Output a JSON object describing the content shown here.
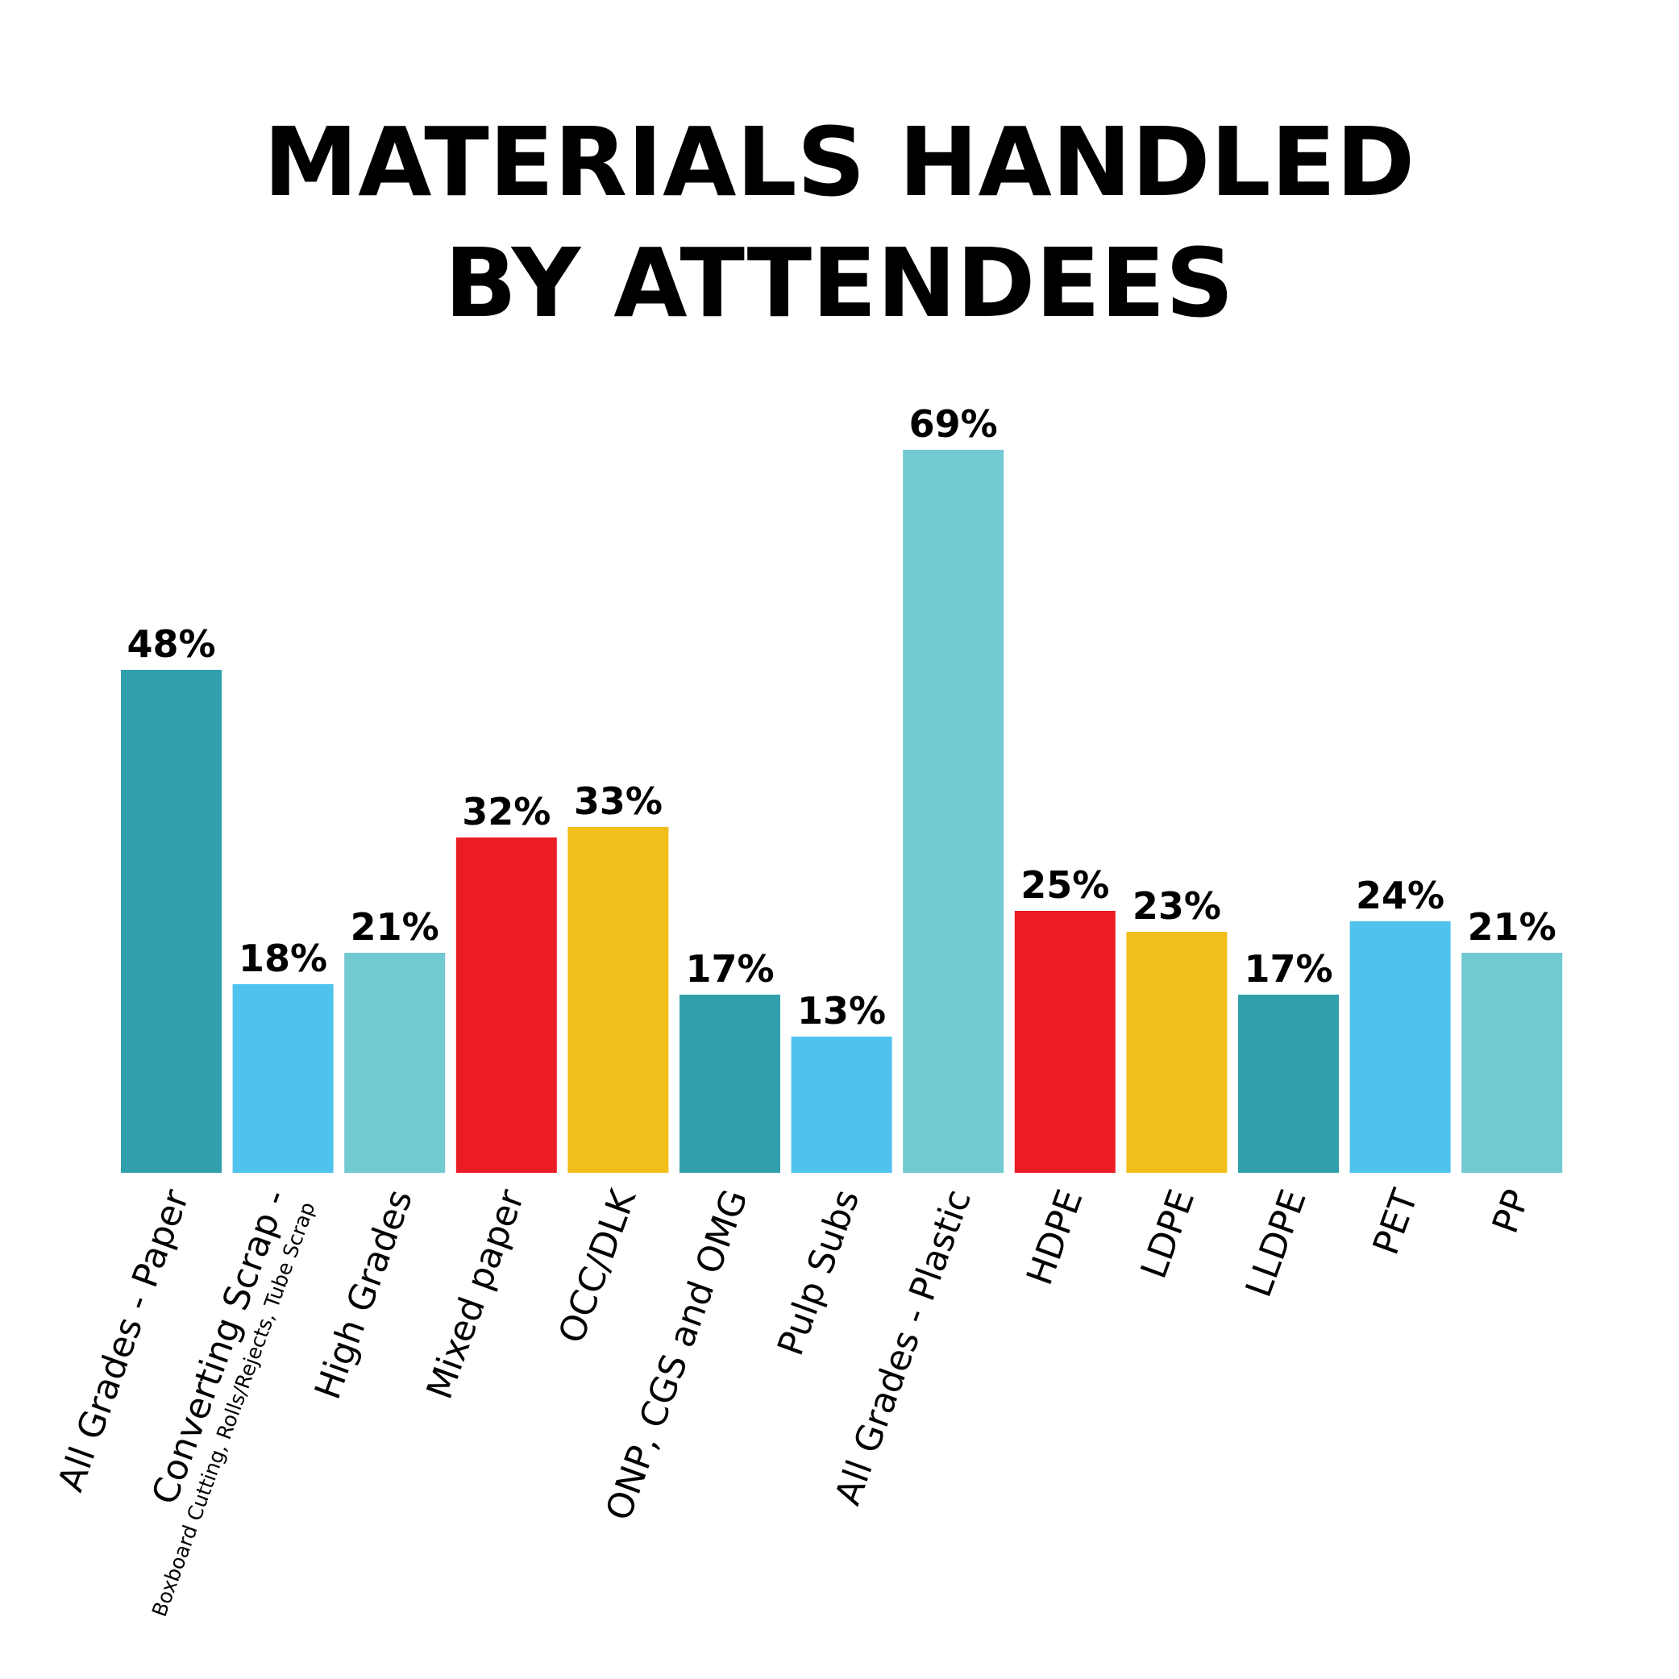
{
  "chart_data": {
    "type": "bar",
    "title_lines": [
      "MATERIALS HANDLED",
      "BY ATTENDEES"
    ],
    "categories": [
      "All Grades - Paper",
      "Converting Scrap -",
      "High Grades",
      "Mixed paper",
      "OCC/DLK",
      "ONP, CGS and OMG",
      "Pulp Subs",
      "All Grades - Plastic",
      "HDPE",
      "LDPE",
      "LLDPE",
      "PET",
      "PP"
    ],
    "category_sublabels": [
      "",
      "Boxboard Cutting, Rolls/Rejects, Tube Scrap",
      "",
      "",
      "",
      "",
      "",
      "",
      "",
      "",
      "",
      "",
      ""
    ],
    "values": [
      48,
      18,
      21,
      32,
      33,
      17,
      13,
      69,
      25,
      23,
      17,
      24,
      21
    ],
    "value_labels": [
      "48%",
      "18%",
      "21%",
      "32%",
      "33%",
      "17%",
      "13%",
      "69%",
      "25%",
      "23%",
      "17%",
      "24%",
      "21%"
    ],
    "colors": [
      "#31A0AC",
      "#4FC3EE",
      "#72C9D1",
      "#EC1C24",
      "#F1BE1C",
      "#31A0AC",
      "#4FC3EE",
      "#72C9D1",
      "#EC1C24",
      "#F1BE1C",
      "#31A0AC",
      "#4FC3EE",
      "#72C9D1"
    ],
    "ylim": [
      0,
      69
    ],
    "grid": false,
    "legend": "none"
  }
}
